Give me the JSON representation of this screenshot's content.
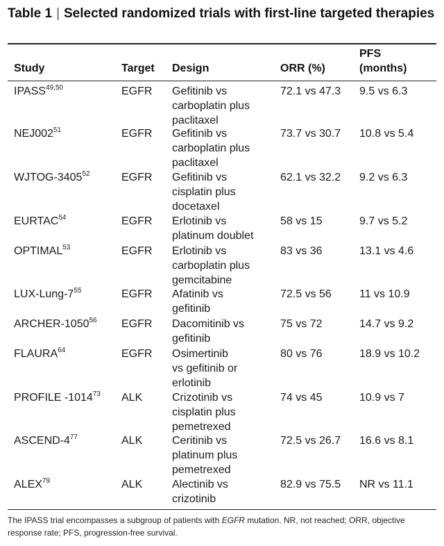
{
  "title": {
    "label": "Table 1",
    "separator": "|",
    "text": "Selected randomized trials with first-line targeted therapies"
  },
  "headers": {
    "study": "Study",
    "target": "Target",
    "design": "Design",
    "orr": "ORR (%)",
    "pfs_line1": "PFS",
    "pfs_line2": "(months)"
  },
  "rows": [
    {
      "study": "IPASS",
      "ref": "49,50",
      "target": "EGFR",
      "design": [
        "Gefitinib vs",
        "carboplatin plus",
        "paclitaxel"
      ],
      "orr": "72.1 vs 47.3",
      "pfs": "9.5 vs 6.3"
    },
    {
      "study": "NEJ002",
      "ref": "51",
      "target": "EGFR",
      "design": [
        "Gefitinib vs",
        "carboplatin plus",
        "paclitaxel"
      ],
      "orr": "73.7 vs 30.7",
      "pfs": "10.8 vs 5.4"
    },
    {
      "study": "WJTOG-3405",
      "ref": "52",
      "target": "EGFR",
      "design": [
        "Gefitinib vs",
        "cisplatin plus",
        "docetaxel"
      ],
      "orr": "62.1 vs 32.2",
      "pfs": "9.2 vs 6.3"
    },
    {
      "study": "EURTAC",
      "ref": "54",
      "target": "EGFR",
      "design": [
        "Erlotinib vs",
        "platinum doublet"
      ],
      "orr": "58 vs 15",
      "pfs": "9.7 vs 5.2"
    },
    {
      "study": "OPTIMAL",
      "ref": "53",
      "target": "EGFR",
      "design": [
        "Erlotinib vs",
        "carboplatin plus",
        "gemcitabine"
      ],
      "orr": "83 vs 36",
      "pfs": "13.1 vs 4.6"
    },
    {
      "study": "LUX-Lung-7",
      "ref": "55",
      "target": "EGFR",
      "design": [
        "Afatinib vs",
        "gefitinib"
      ],
      "orr": "72.5 vs 56",
      "pfs": "11 vs 10.9"
    },
    {
      "study": "ARCHER-1050",
      "ref": "56",
      "target": "EGFR",
      "design": [
        "Dacomitinib vs",
        "gefitinib"
      ],
      "orr": "75 vs 72",
      "pfs": "14.7 vs 9.2"
    },
    {
      "study": "FLAURA",
      "ref": "64",
      "target": "EGFR",
      "design": [
        "Osimertinib",
        "vs gefitinib or",
        "erlotinib"
      ],
      "orr": "80 vs 76",
      "pfs": "18.9 vs 10.2"
    },
    {
      "study": "PROFILE -1014",
      "ref": "73",
      "target": "ALK",
      "design": [
        "Crizotinib vs",
        "cisplatin plus",
        "pemetrexed"
      ],
      "orr": "74 vs 45",
      "pfs": "10.9 vs 7"
    },
    {
      "study": "ASCEND-4",
      "ref": "77",
      "target": "ALK",
      "design": [
        "Ceritinib vs",
        "platinum plus",
        "pemetrexed"
      ],
      "orr": "72.5 vs 26.7",
      "pfs": "16.6 vs 8.1"
    },
    {
      "study": "ALEX",
      "ref": "79",
      "target": "ALK",
      "design": [
        "Alectinib vs",
        "crizotinib"
      ],
      "orr": "82.9 vs 75.5",
      "pfs": "NR vs 11.1"
    }
  ],
  "footnote": {
    "before": "The IPASS trial encompasses a subgroup of patients with ",
    "italic": "EGFR",
    "after": " mutation. NR, not reached; ORR, objective response rate; PFS, progression-free survival."
  }
}
